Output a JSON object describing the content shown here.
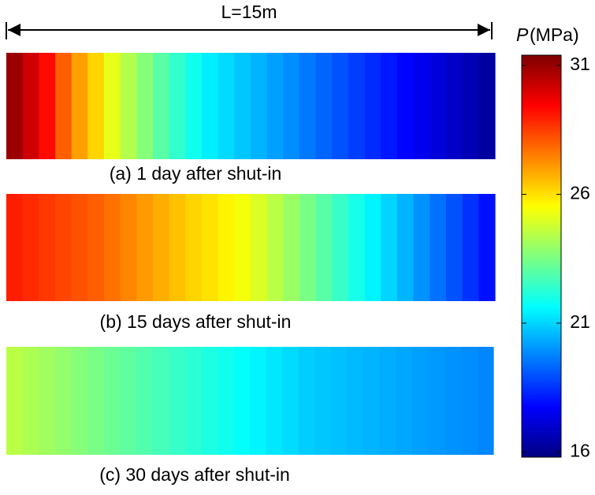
{
  "chart_data": {
    "type": "heatmap",
    "length_label": "L=15m",
    "colorbar_symbol": "P",
    "colorbar_label": "(MPa)",
    "colormap": "jet",
    "clim": [
      15.8,
      31.4
    ],
    "cticks": [
      16,
      21,
      26,
      31
    ],
    "panels": [
      {
        "caption": "(a) 1 day after shut-in",
        "values": [
          31,
          30.2,
          29.3,
          28,
          27,
          26.2,
          25.2,
          24.4,
          23.7,
          23,
          22.4,
          21.9,
          21.4,
          21.1,
          20.8,
          20.5,
          20.2,
          19.9,
          19.6,
          19.3,
          19,
          18.7,
          18.4,
          18.1,
          17.8,
          17.5,
          17.2,
          16.9,
          16.6,
          16.3
        ]
      },
      {
        "caption": "(b) 15 days after shut-in",
        "values": [
          29,
          28.8,
          28.6,
          28.4,
          28.2,
          28,
          27.7,
          27.4,
          27.1,
          26.8,
          26.5,
          26.2,
          26,
          25.7,
          25.4,
          25,
          24.5,
          24,
          23.5,
          23,
          22.5,
          22,
          21.5,
          21,
          20.5,
          20,
          19.5,
          19,
          18.5,
          18
        ]
      },
      {
        "caption": "(c) 30 days after shut-in",
        "values": [
          24.5,
          24.3,
          24.1,
          23.9,
          23.7,
          23.5,
          23.3,
          23.1,
          22.9,
          22.7,
          22.5,
          22.3,
          22.1,
          21.9,
          21.7,
          21.5,
          21.3,
          21.1,
          20.9,
          20.8,
          20.7,
          20.6,
          20.5,
          20.4,
          20.3,
          20.2,
          20.1,
          20,
          19.9,
          19.8
        ]
      }
    ]
  }
}
